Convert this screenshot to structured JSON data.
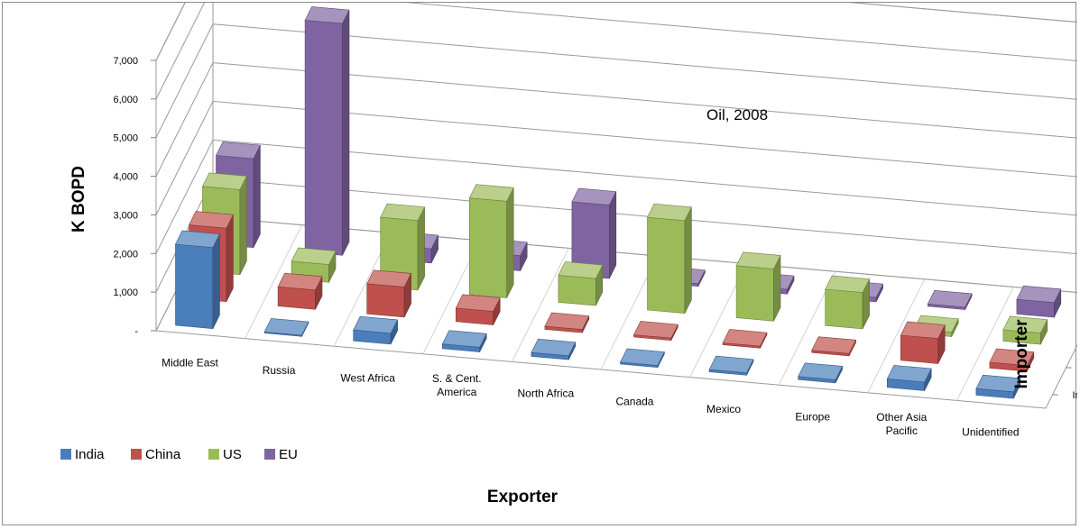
{
  "chart_data": {
    "type": "bar3d",
    "annotation": "Oil, 2008",
    "xlabel": "Exporter",
    "ylabel": "K BOPD",
    "zlabel": "Importer",
    "ylim": [
      0,
      7000
    ],
    "yticks": [
      "-",
      "1,000",
      "2,000",
      "3,000",
      "4,000",
      "5,000",
      "6,000",
      "7,000"
    ],
    "grid": true,
    "legend_position": "bottom-left",
    "categories": [
      [
        "Middle East"
      ],
      [
        "Russia"
      ],
      [
        "West Africa"
      ],
      [
        "S. & Cent.",
        "America"
      ],
      [
        "North Africa"
      ],
      [
        "Canada"
      ],
      [
        "Mexico"
      ],
      [
        "Europe"
      ],
      [
        "Other Asia",
        "Pacific"
      ],
      [
        "Unidentified"
      ]
    ],
    "series": [
      {
        "name": "India",
        "color": "#4a7ebb",
        "values": [
          2100,
          30,
          280,
          120,
          100,
          50,
          60,
          80,
          220,
          170
        ]
      },
      {
        "name": "China",
        "color": "#c0504d",
        "values": [
          1900,
          500,
          780,
          350,
          80,
          60,
          50,
          60,
          650,
          150
        ]
      },
      {
        "name": "US",
        "color": "#9bbb59",
        "values": [
          2200,
          460,
          1800,
          2500,
          700,
          2400,
          1350,
          940,
          110,
          290
        ]
      },
      {
        "name": "EU",
        "color": "#8064a2",
        "values": [
          2300,
          6000,
          370,
          390,
          1900,
          70,
          120,
          110,
          60,
          380
        ]
      }
    ]
  }
}
